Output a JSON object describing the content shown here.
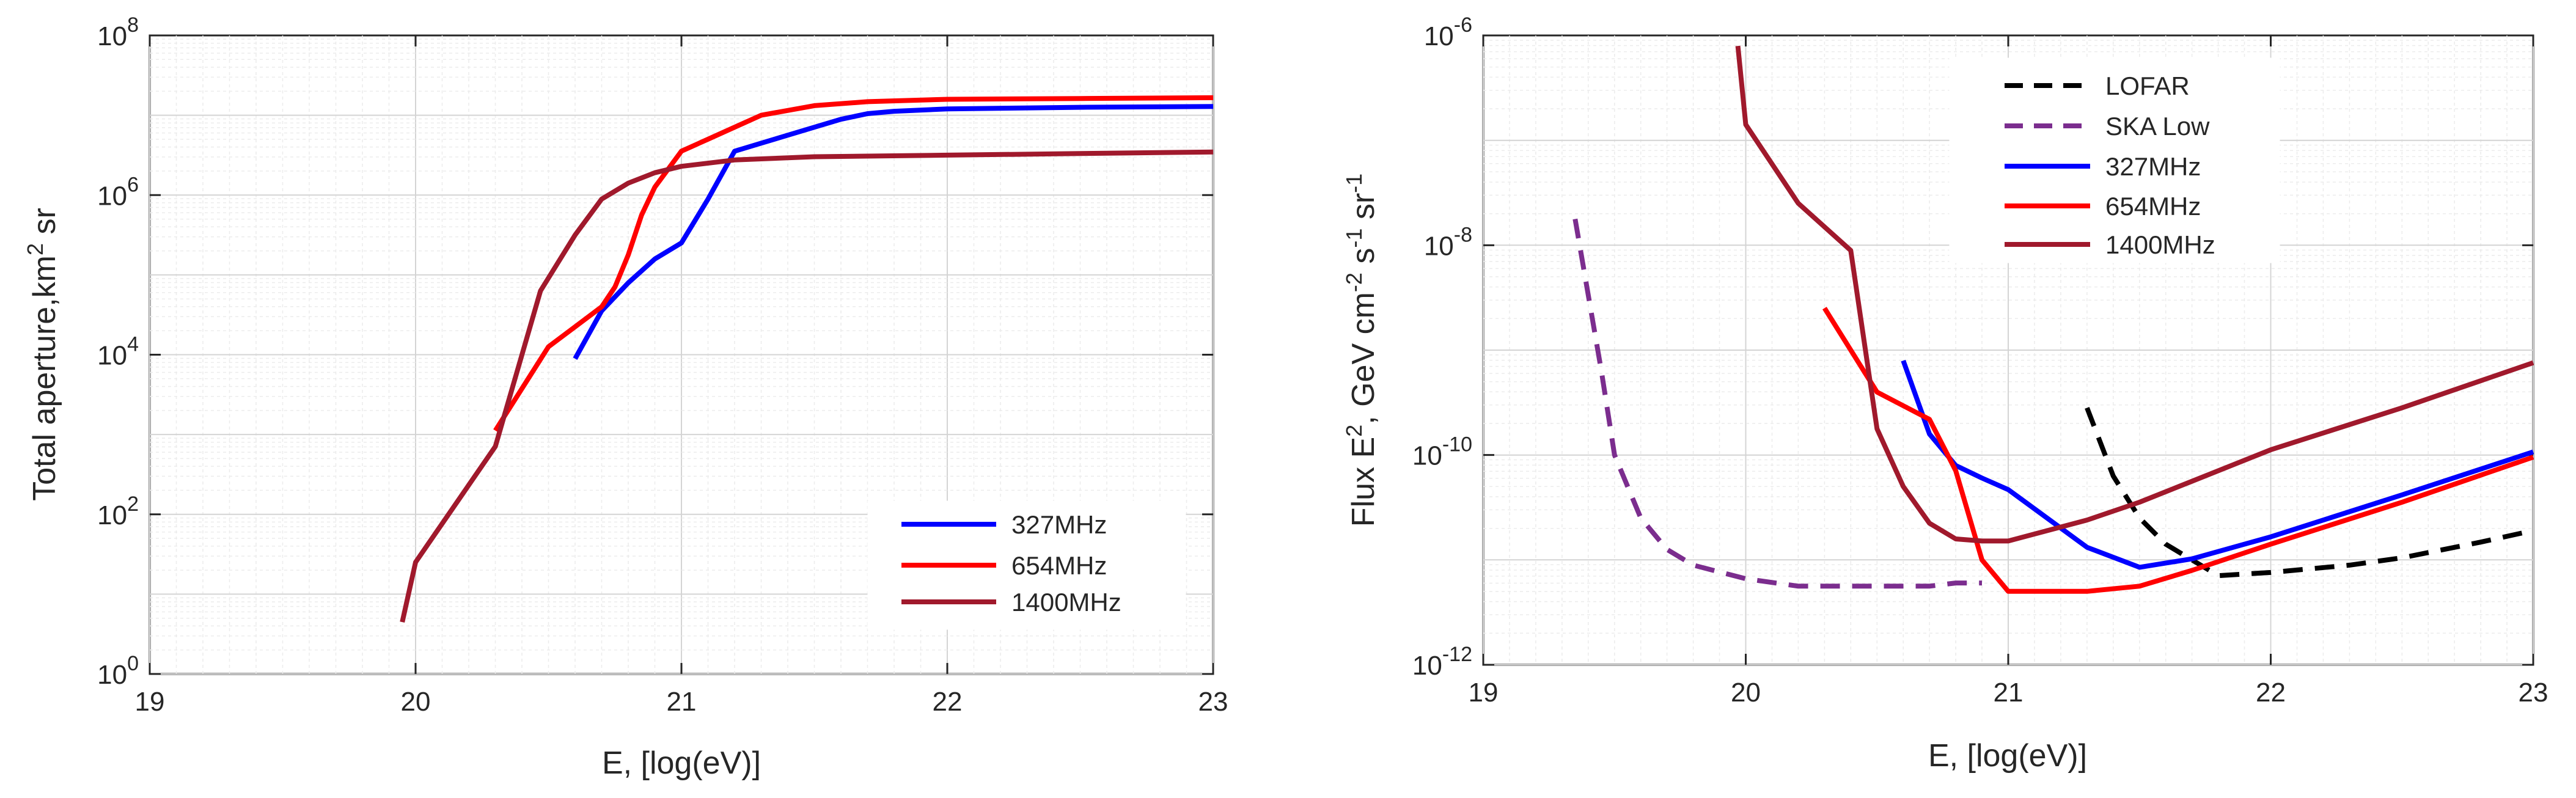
{
  "chart_data": [
    {
      "type": "line",
      "title": "",
      "xlabel": "E, [log(eV)]",
      "ylabel": {
        "prefix": "Total aperture,km",
        "sup": "2",
        "suffix": " sr"
      },
      "xlim": [
        19,
        23
      ],
      "ylim_log10": [
        0,
        8
      ],
      "yscale": "log",
      "grid": true,
      "x_ticks": [
        19,
        20,
        21,
        22,
        23
      ],
      "x_tick_labels": [
        "19",
        "20",
        "21",
        "22",
        "23"
      ],
      "y_ticks_log10": [
        0,
        2,
        4,
        6,
        8
      ],
      "y_tick_labels": [
        {
          "base": "10",
          "exp": "0"
        },
        {
          "base": "10",
          "exp": "2"
        },
        {
          "base": "10",
          "exp": "4"
        },
        {
          "base": "10",
          "exp": "6"
        },
        {
          "base": "10",
          "exp": "8"
        }
      ],
      "legend_position": "bottom-right",
      "series": [
        {
          "name": "327MHz",
          "color": "#0000ff",
          "dash": "solid",
          "x": [
            20.6,
            20.7,
            20.8,
            20.9,
            21.0,
            21.1,
            21.2,
            21.3,
            21.5,
            21.6,
            21.7,
            21.8,
            22.0,
            22.5,
            23.0
          ],
          "log10_y": [
            3.95,
            4.55,
            4.9,
            5.2,
            5.4,
            5.95,
            6.55,
            6.65,
            6.85,
            6.95,
            7.02,
            7.05,
            7.08,
            7.1,
            7.11
          ]
        },
        {
          "name": "654MHz",
          "color": "#ff0000",
          "dash": "solid",
          "x": [
            20.3,
            20.5,
            20.6,
            20.7,
            20.75,
            20.8,
            20.85,
            20.9,
            21.0,
            21.1,
            21.2,
            21.3,
            21.5,
            21.7,
            22.0,
            22.5,
            23.0
          ],
          "log10_y": [
            3.05,
            4.1,
            4.35,
            4.6,
            4.85,
            5.25,
            5.75,
            6.1,
            6.55,
            6.7,
            6.85,
            7.0,
            7.12,
            7.17,
            7.2,
            7.21,
            7.22
          ]
        },
        {
          "name": "1400MHz",
          "color": "#a0192c",
          "dash": "solid",
          "x": [
            19.95,
            20.0,
            20.3,
            20.47,
            20.6,
            20.7,
            20.8,
            20.9,
            21.0,
            21.2,
            21.5,
            22.0,
            22.5,
            23.0
          ],
          "log10_y": [
            0.65,
            1.4,
            2.85,
            4.8,
            5.5,
            5.95,
            6.15,
            6.28,
            6.36,
            6.44,
            6.48,
            6.5,
            6.52,
            6.54
          ]
        }
      ]
    },
    {
      "type": "line",
      "title": "",
      "xlabel": "E, [log(eV)]",
      "ylabel": {
        "p1": "Flux E",
        "s1": "2",
        "p2": ", GeV cm",
        "s2": "-2",
        "p3": " s",
        "s3": "-1",
        "p4": " sr",
        "s4": "-1"
      },
      "xlim": [
        19,
        23
      ],
      "ylim_log10": [
        -12,
        -6
      ],
      "yscale": "log",
      "grid": true,
      "x_ticks": [
        19,
        20,
        21,
        22,
        23
      ],
      "x_tick_labels": [
        "19",
        "20",
        "21",
        "22",
        "23"
      ],
      "y_ticks_log10": [
        -12,
        -10,
        -8,
        -6
      ],
      "y_tick_labels": [
        {
          "base": "10",
          "exp": "-12"
        },
        {
          "base": "10",
          "exp": "-10"
        },
        {
          "base": "10",
          "exp": "-8"
        },
        {
          "base": "10",
          "exp": "-6"
        }
      ],
      "legend_position": "top-center",
      "series": [
        {
          "name": "LOFAR",
          "color": "#000000",
          "dash": "dashed",
          "x": [
            21.3,
            21.4,
            21.5,
            21.6,
            21.7,
            21.8,
            22.0,
            22.3,
            22.5,
            22.8,
            23.0
          ],
          "log10_y": [
            -9.55,
            -10.2,
            -10.6,
            -10.85,
            -11.0,
            -11.15,
            -11.12,
            -11.05,
            -10.98,
            -10.83,
            -10.72
          ]
        },
        {
          "name": "SKA Low",
          "color": "#7b2d8e",
          "dash": "dashed",
          "x": [
            19.35,
            19.45,
            19.5,
            19.6,
            19.7,
            19.8,
            20.0,
            20.2,
            20.4,
            20.6,
            20.7,
            20.8,
            20.9
          ],
          "log10_y": [
            -7.75,
            -9.2,
            -10.0,
            -10.6,
            -10.9,
            -11.05,
            -11.18,
            -11.25,
            -11.25,
            -11.25,
            -11.25,
            -11.22,
            -11.22
          ]
        },
        {
          "name": "327MHz",
          "color": "#0000ff",
          "dash": "solid",
          "x": [
            20.6,
            20.7,
            20.8,
            20.9,
            21.0,
            21.3,
            21.5,
            21.7,
            22.0,
            22.5,
            23.0
          ],
          "log10_y": [
            -9.1,
            -9.8,
            -10.1,
            -10.22,
            -10.33,
            -10.88,
            -11.07,
            -10.99,
            -10.78,
            -10.38,
            -9.97
          ]
        },
        {
          "name": "654MHz",
          "color": "#ff0000",
          "dash": "solid",
          "x": [
            20.3,
            20.5,
            20.6,
            20.7,
            20.8,
            20.9,
            21.0,
            21.3,
            21.5,
            21.7,
            22.0,
            22.5,
            23.0
          ],
          "log10_y": [
            -8.6,
            -9.4,
            -9.53,
            -9.66,
            -10.15,
            -11.0,
            -11.3,
            -11.3,
            -11.25,
            -11.1,
            -10.85,
            -10.45,
            -10.02
          ]
        },
        {
          "name": "1400MHz",
          "color": "#a0192c",
          "dash": "solid",
          "x": [
            19.97,
            20.0,
            20.2,
            20.4,
            20.5,
            20.6,
            20.7,
            20.8,
            20.9,
            21.0,
            21.3,
            21.5,
            21.7,
            22.0,
            22.5,
            23.0
          ],
          "log10_y": [
            -6.1,
            -6.85,
            -7.6,
            -8.05,
            -9.75,
            -10.3,
            -10.65,
            -10.8,
            -10.82,
            -10.82,
            -10.62,
            -10.45,
            -10.25,
            -9.95,
            -9.55,
            -9.12
          ]
        }
      ]
    }
  ]
}
